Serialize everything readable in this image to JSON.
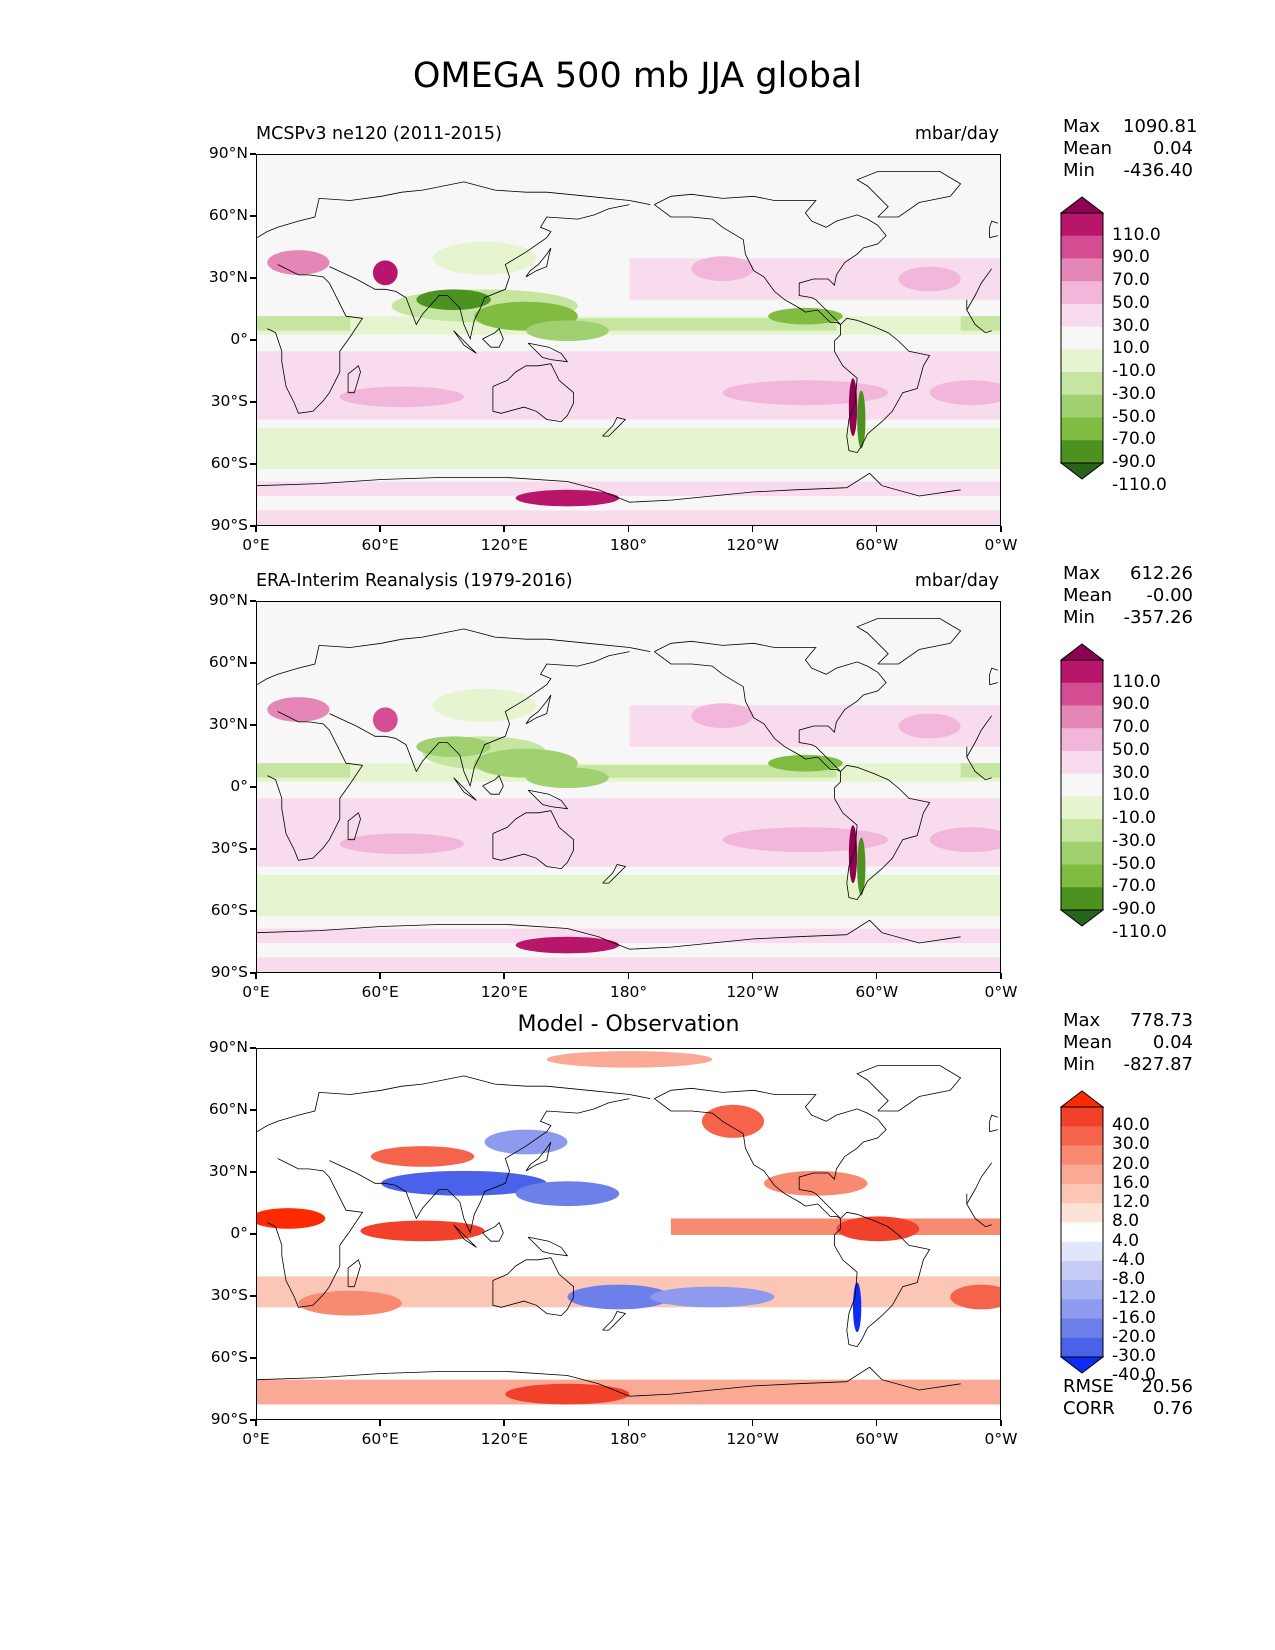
{
  "figure": {
    "title": "OMEGA 500 mb JJA global"
  },
  "chart_data": [
    {
      "type": "heatmap",
      "panel": "test",
      "title": "MCSPv3 ne120 (2011-2015)",
      "units": "mbar/day",
      "stats": {
        "max_label": "Max",
        "max": "1090.81",
        "mean_label": "Mean",
        "mean": "0.04",
        "min_label": "Min",
        "min": "-436.40"
      },
      "colorbar": {
        "levels": [
          "110.0",
          "90.0",
          "70.0",
          "50.0",
          "30.0",
          "10.0",
          "-10.0",
          "-30.0",
          "-50.0",
          "-70.0",
          "-90.0",
          "-110.0"
        ],
        "colors": [
          "#8e0152",
          "#b8166a",
          "#d44d93",
          "#e486b6",
          "#f1b6da",
          "#f8dbec",
          "#f7f7f7",
          "#e6f5d0",
          "#c5e5a0",
          "#a0d070",
          "#7fbc41",
          "#4d9221",
          "#276419"
        ]
      },
      "y_ticks": [
        "90°N",
        "60°N",
        "30°N",
        "0°",
        "30°S",
        "60°S",
        "90°S"
      ],
      "x_ticks": [
        "0°E",
        "60°E",
        "120°E",
        "180°",
        "120°W",
        "60°W",
        "0°W"
      ],
      "xlim": [
        0,
        360
      ],
      "ylim": [
        -90,
        90
      ]
    },
    {
      "type": "heatmap",
      "panel": "reference",
      "title": "ERA-Interim Reanalysis (1979-2016)",
      "units": "mbar/day",
      "stats": {
        "max_label": "Max",
        "max": "612.26",
        "mean_label": "Mean",
        "mean": "-0.00",
        "min_label": "Min",
        "min": "-357.26"
      },
      "colorbar": {
        "levels": [
          "110.0",
          "90.0",
          "70.0",
          "50.0",
          "30.0",
          "10.0",
          "-10.0",
          "-30.0",
          "-50.0",
          "-70.0",
          "-90.0",
          "-110.0"
        ],
        "colors": [
          "#8e0152",
          "#b8166a",
          "#d44d93",
          "#e486b6",
          "#f1b6da",
          "#f8dbec",
          "#f7f7f7",
          "#e6f5d0",
          "#c5e5a0",
          "#a0d070",
          "#7fbc41",
          "#4d9221",
          "#276419"
        ]
      },
      "y_ticks": [
        "90°N",
        "60°N",
        "30°N",
        "0°",
        "30°S",
        "60°S",
        "90°S"
      ],
      "x_ticks": [
        "0°E",
        "60°E",
        "120°E",
        "180°",
        "120°W",
        "60°W",
        "0°W"
      ],
      "xlim": [
        0,
        360
      ],
      "ylim": [
        -90,
        90
      ]
    },
    {
      "type": "heatmap",
      "panel": "difference",
      "title": "Model - Observation",
      "stats": {
        "max_label": "Max",
        "max": "778.73",
        "mean_label": "Mean",
        "mean": "0.04",
        "min_label": "Min",
        "min": "-827.87"
      },
      "metrics": {
        "rmse_label": "RMSE",
        "rmse": "20.56",
        "corr_label": "CORR",
        "corr": "0.76"
      },
      "colorbar": {
        "levels": [
          "40.0",
          "30.0",
          "20.0",
          "16.0",
          "12.0",
          "8.0",
          "4.0",
          "-4.0",
          "-8.0",
          "-12.0",
          "-16.0",
          "-20.0",
          "-30.0",
          "-40.0"
        ],
        "colors": [
          "#ff2a00",
          "#f2412a",
          "#f5634a",
          "#f78a70",
          "#f9a994",
          "#fbc6b6",
          "#fde2d8",
          "#ffffff",
          "#e2e6fb",
          "#c6ccf6",
          "#a9b4f2",
          "#8d9aed",
          "#6d80ea",
          "#4a62e9",
          "#0a2cf5"
        ]
      },
      "y_ticks": [
        "90°N",
        "60°N",
        "30°N",
        "0°",
        "30°S",
        "60°S",
        "90°S"
      ],
      "x_ticks": [
        "0°E",
        "60°E",
        "120°E",
        "180°",
        "120°W",
        "60°W",
        "0°W"
      ],
      "xlim": [
        0,
        360
      ],
      "ylim": [
        -90,
        90
      ]
    }
  ]
}
